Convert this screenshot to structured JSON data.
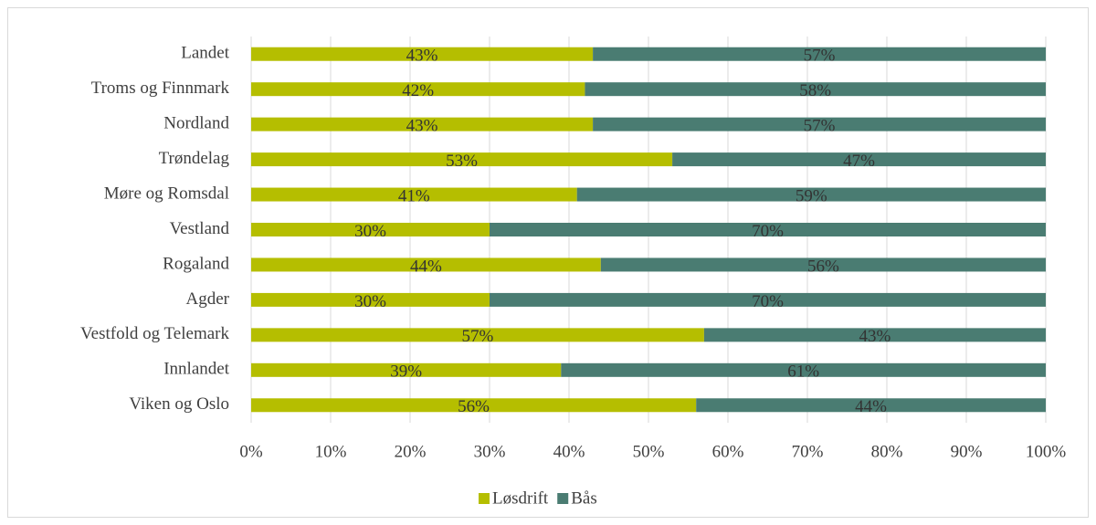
{
  "chart_data": {
    "type": "stacked_bar_horizontal",
    "categories": [
      "Landet",
      "Troms og Finnmark",
      "Nordland",
      "Trøndelag",
      "Møre og Romsdal",
      "Vestland",
      "Rogaland",
      "Agder",
      "Vestfold og Telemark",
      "Innlandet",
      "Viken og Oslo"
    ],
    "series": [
      {
        "name": "Løsdrift",
        "color": "#b5be00",
        "values": [
          43,
          42,
          43,
          53,
          41,
          30,
          44,
          30,
          57,
          39,
          56
        ],
        "value_labels": [
          "43%",
          "42%",
          "43%",
          "53%",
          "41%",
          "30%",
          "44%",
          "30%",
          "57%",
          "39%",
          "56%"
        ]
      },
      {
        "name": "Bås",
        "color": "#4a7c72",
        "values": [
          57,
          58,
          57,
          47,
          59,
          70,
          56,
          70,
          43,
          61,
          44
        ],
        "value_labels": [
          "57%",
          "58%",
          "57%",
          "47%",
          "59%",
          "70%",
          "56%",
          "70%",
          "43%",
          "61%",
          "44%"
        ]
      }
    ],
    "xlim": [
      0,
      100
    ],
    "xticks": [
      {
        "value": 0,
        "label": "0%"
      },
      {
        "value": 10,
        "label": "10%"
      },
      {
        "value": 20,
        "label": "20%"
      },
      {
        "value": 30,
        "label": "30%"
      },
      {
        "value": 40,
        "label": "40%"
      },
      {
        "value": 50,
        "label": "50%"
      },
      {
        "value": 60,
        "label": "60%"
      },
      {
        "value": 70,
        "label": "70%"
      },
      {
        "value": 80,
        "label": "80%"
      },
      {
        "value": 90,
        "label": "90%"
      },
      {
        "value": 100,
        "label": "100%"
      }
    ],
    "grid": true,
    "legend": "bottom"
  }
}
